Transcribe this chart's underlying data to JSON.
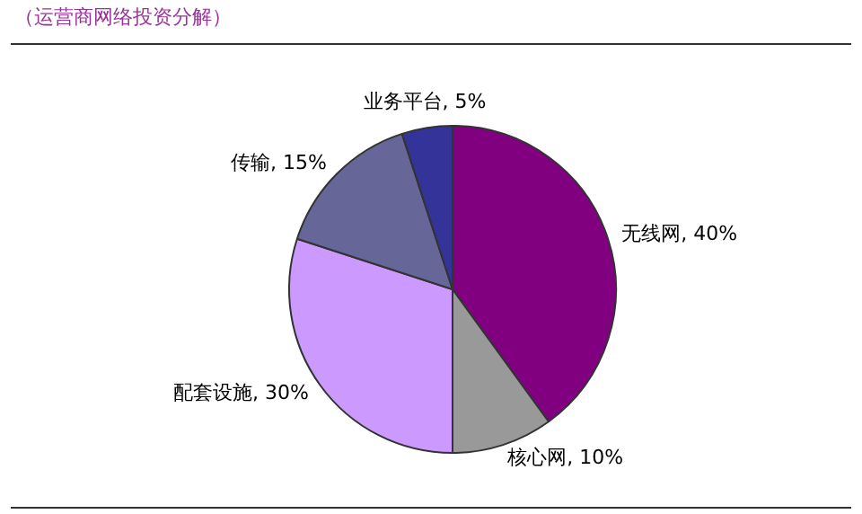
{
  "chart_data": {
    "type": "pie",
    "title": "（运营商网络投资分解）",
    "categories": [
      "无线网",
      "核心网",
      "配套设施",
      "传输",
      "业务平台"
    ],
    "values": [
      40,
      10,
      30,
      15,
      5
    ],
    "value_labels": [
      "40%",
      "10%",
      "30%",
      "15%",
      "5%"
    ],
    "colors": [
      "#800080",
      "#999999",
      "#cc99ff",
      "#666699",
      "#333399"
    ],
    "legend": false
  }
}
